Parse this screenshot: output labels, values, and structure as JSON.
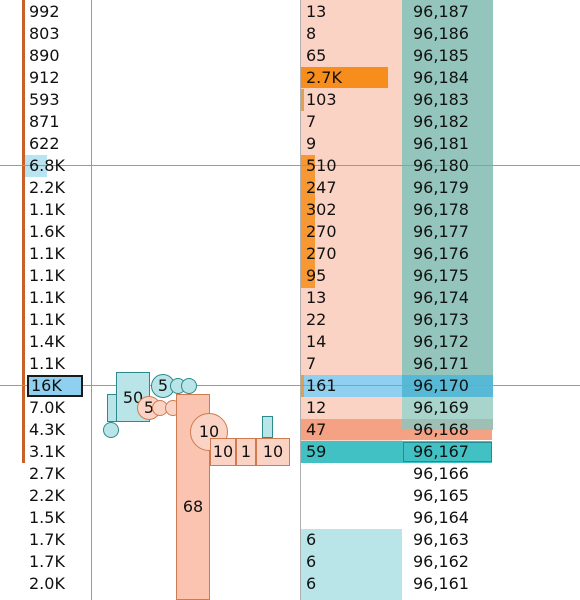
{
  "volume_profile": [
    "992",
    "803",
    "890",
    "912",
    "593",
    "871",
    "622",
    "6.8K",
    "2.2K",
    "1.1K",
    "1.6K",
    "1.1K",
    "1.1K",
    "1.1K",
    "1.1K",
    "1.4K",
    "1.1K",
    "16K",
    "7.0K",
    "4.3K",
    "3.1K",
    "2.7K",
    "2.2K",
    "1.5K",
    "1.7K",
    "1.7K",
    "2.0K"
  ],
  "bid_sizes": [
    "13",
    "8",
    "65",
    "2.7K",
    "103",
    "7",
    "9",
    "510",
    "247",
    "302",
    "270",
    "270",
    "95",
    "13",
    "22",
    "14",
    "7",
    "161",
    "12",
    "47",
    "59",
    "",
    "",
    "",
    "6",
    "6",
    "6"
  ],
  "prices": [
    "96,187",
    "96,186",
    "96,185",
    "96,184",
    "96,183",
    "96,182",
    "96,181",
    "96,180",
    "96,179",
    "96,178",
    "96,177",
    "96,176",
    "96,175",
    "96,174",
    "96,173",
    "96,172",
    "96,171",
    "96,170",
    "96,169",
    "96,168",
    "96,167",
    "96,166",
    "96,165",
    "96,164",
    "96,163",
    "96,162",
    "96,161"
  ],
  "trade_bubbles": {
    "b50": "50",
    "b5a": "5",
    "b5b": "5",
    "b10": "10",
    "b68": "68",
    "t10a": "10",
    "t1": "1",
    "t10b": "10"
  },
  "colors": {
    "bid_bg": "#fbd3c4",
    "price_bg": "#94c5bd",
    "highlight_orange": "#f78d1c",
    "current_price_blue": "#8fd0f0",
    "ask_teal": "#41c1c4",
    "sell_red": "#f5a184",
    "volume_bar": "#c8602a"
  }
}
